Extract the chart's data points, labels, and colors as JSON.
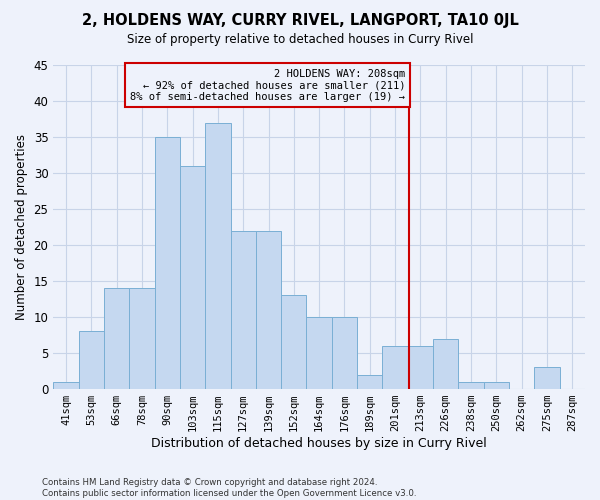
{
  "title": "2, HOLDENS WAY, CURRY RIVEL, LANGPORT, TA10 0JL",
  "subtitle": "Size of property relative to detached houses in Curry Rivel",
  "xlabel": "Distribution of detached houses by size in Curry Rivel",
  "ylabel": "Number of detached properties",
  "bins": [
    "41sqm",
    "53sqm",
    "66sqm",
    "78sqm",
    "90sqm",
    "103sqm",
    "115sqm",
    "127sqm",
    "139sqm",
    "152sqm",
    "164sqm",
    "176sqm",
    "189sqm",
    "201sqm",
    "213sqm",
    "226sqm",
    "238sqm",
    "250sqm",
    "262sqm",
    "275sqm",
    "287sqm"
  ],
  "values": [
    1,
    8,
    14,
    14,
    35,
    31,
    37,
    22,
    22,
    13,
    10,
    10,
    2,
    6,
    6,
    7,
    1,
    1,
    0,
    3,
    0
  ],
  "bar_color": "#c5d8f0",
  "bar_edge_color": "#7aafd4",
  "grid_color": "#c8d4e8",
  "vline_x_index": 13.55,
  "vline_color": "#cc0000",
  "annotation_text": "2 HOLDENS WAY: 208sqm\n← 92% of detached houses are smaller (211)\n8% of semi-detached houses are larger (19) →",
  "ylim": [
    0,
    45
  ],
  "yticks": [
    0,
    5,
    10,
    15,
    20,
    25,
    30,
    35,
    40,
    45
  ],
  "footer": "Contains HM Land Registry data © Crown copyright and database right 2024.\nContains public sector information licensed under the Open Government Licence v3.0.",
  "bg_color": "#eef2fb"
}
